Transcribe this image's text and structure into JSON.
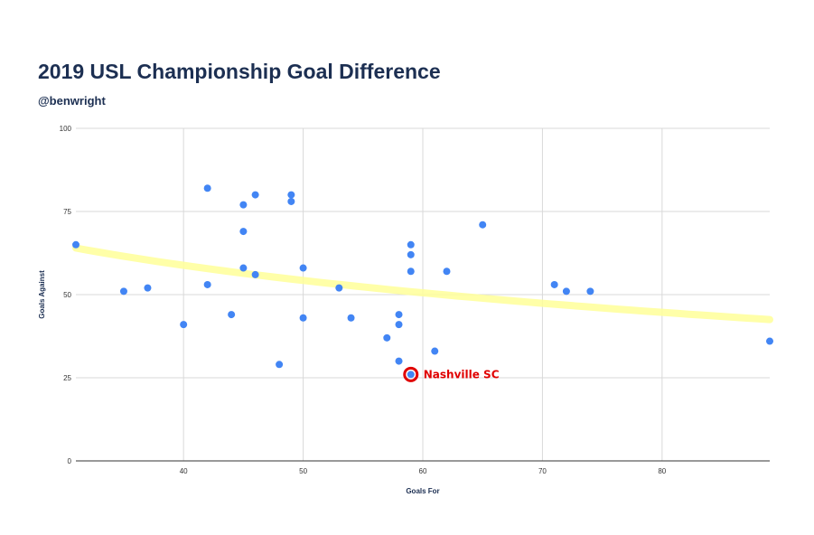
{
  "header": {
    "title": "2019 USL Championship Goal Difference",
    "subtitle": "@benwright"
  },
  "colors": {
    "title": "#1c2f52",
    "point": "#4285f4",
    "trendline": "#ffff99",
    "highlight": "#e00000",
    "grid": "#d9d9d9"
  },
  "chart_data": {
    "type": "scatter",
    "title": "2019 USL Championship Goal Difference",
    "subtitle": "@benwright",
    "xlabel": "Goals For",
    "ylabel": "Goals Against",
    "xlim": [
      31,
      89
    ],
    "ylim": [
      0,
      100
    ],
    "x_ticks": [
      40,
      50,
      60,
      70,
      80
    ],
    "y_ticks": [
      0,
      25,
      50,
      75,
      100
    ],
    "grid": true,
    "legend": "none",
    "points": [
      {
        "x": 31,
        "y": 65
      },
      {
        "x": 35,
        "y": 51
      },
      {
        "x": 37,
        "y": 52
      },
      {
        "x": 40,
        "y": 41
      },
      {
        "x": 42,
        "y": 82
      },
      {
        "x": 42,
        "y": 53
      },
      {
        "x": 44,
        "y": 44
      },
      {
        "x": 45,
        "y": 77
      },
      {
        "x": 45,
        "y": 69
      },
      {
        "x": 45,
        "y": 58
      },
      {
        "x": 46,
        "y": 80
      },
      {
        "x": 46,
        "y": 56
      },
      {
        "x": 48,
        "y": 29
      },
      {
        "x": 49,
        "y": 80
      },
      {
        "x": 49,
        "y": 78
      },
      {
        "x": 50,
        "y": 58
      },
      {
        "x": 50,
        "y": 43
      },
      {
        "x": 53,
        "y": 52
      },
      {
        "x": 54,
        "y": 43
      },
      {
        "x": 57,
        "y": 37
      },
      {
        "x": 58,
        "y": 44
      },
      {
        "x": 58,
        "y": 41
      },
      {
        "x": 58,
        "y": 30
      },
      {
        "x": 59,
        "y": 65
      },
      {
        "x": 59,
        "y": 62
      },
      {
        "x": 59,
        "y": 57
      },
      {
        "x": 59,
        "y": 26
      },
      {
        "x": 61,
        "y": 33
      },
      {
        "x": 62,
        "y": 57
      },
      {
        "x": 65,
        "y": 71
      },
      {
        "x": 71,
        "y": 53
      },
      {
        "x": 72,
        "y": 51
      },
      {
        "x": 74,
        "y": 51
      },
      {
        "x": 89,
        "y": 36
      }
    ],
    "trendline": {
      "type": "logarithmic",
      "points": [
        {
          "x": 31,
          "y": 64
        },
        {
          "x": 89,
          "y": 42.5
        }
      ]
    },
    "highlight": {
      "x": 59,
      "y": 26,
      "label": "Nashville SC"
    }
  }
}
